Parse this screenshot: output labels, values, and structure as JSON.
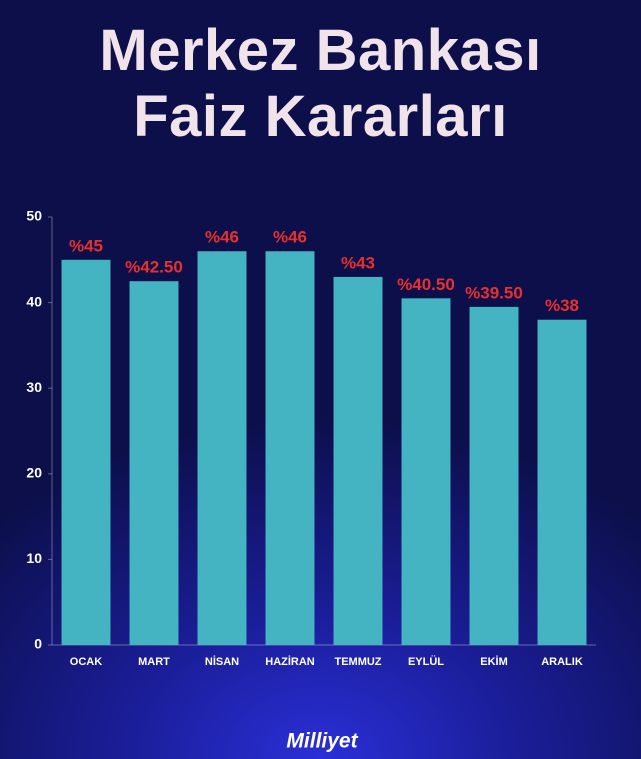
{
  "chart_data": {
    "type": "bar",
    "title": "Merkez Bankası Faiz Kararları",
    "categories": [
      "OCAK",
      "MART",
      "NİSAN",
      "HAZİRAN",
      "TEMMUZ",
      "EYLÜL",
      "EKİM",
      "ARALIK"
    ],
    "values": [
      45,
      42.5,
      46,
      46,
      43,
      40.5,
      39.5,
      38
    ],
    "value_labels": [
      "%45",
      "%42.50",
      "%46",
      "%46",
      "%43",
      "%40.50",
      "%39.50",
      "%38"
    ],
    "color": "#44b4c3",
    "ylim": [
      0,
      50
    ],
    "yticks": [
      0,
      10,
      20,
      30,
      40,
      50
    ],
    "grid": false,
    "source": "Milliyet"
  }
}
